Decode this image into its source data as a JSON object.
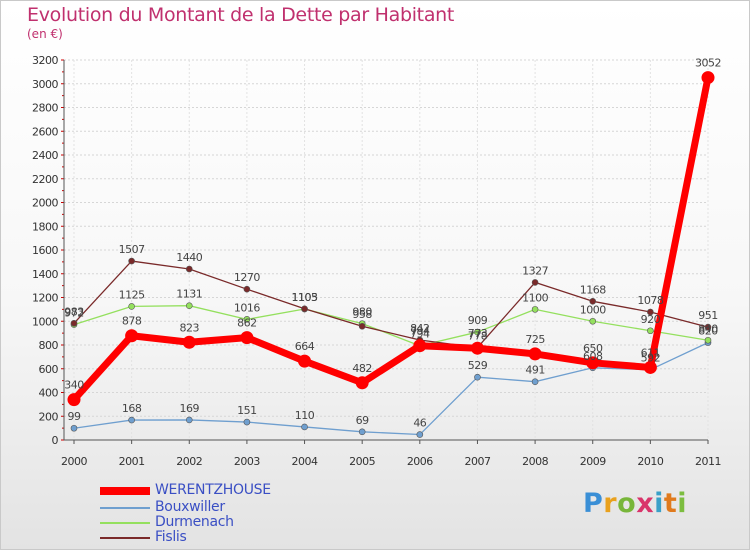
{
  "title": "Evolution du Montant de la Dette par Habitant",
  "subtitle": "(en €)",
  "logo_text": "Proxiti",
  "chart_data": {
    "type": "line",
    "title": "Evolution du Montant de la Dette par Habitant",
    "ylabel": "(en €)",
    "xlabel": "",
    "x": [
      "2000",
      "2001",
      "2002",
      "2003",
      "2004",
      "2005",
      "2006",
      "2007",
      "2008",
      "2009",
      "2010",
      "2011"
    ],
    "ylim": [
      0,
      3200
    ],
    "yticks": [
      0,
      200,
      400,
      600,
      800,
      1000,
      1200,
      1400,
      1600,
      1800,
      2000,
      2200,
      2400,
      2600,
      2800,
      3000,
      3200
    ],
    "grid": true,
    "legend_position": "bottom-left",
    "series": [
      {
        "name": "WERENTZHOUSE",
        "color": "#ff0000",
        "values": [
          340,
          878,
          823,
          862,
          664,
          482,
          794,
          773,
          725,
          650,
          611,
          3052
        ]
      },
      {
        "name": "Bouxwiller",
        "color": "#6f9fcf",
        "values": [
          99,
          168,
          169,
          151,
          110,
          69,
          46,
          529,
          491,
          608,
          592,
          820
        ]
      },
      {
        "name": "Durmenach",
        "color": "#94e05e",
        "values": [
          972,
          1125,
          1131,
          1016,
          1103,
          980,
          794,
          909,
          1100,
          1000,
          920,
          840
        ]
      },
      {
        "name": "Fislis",
        "color": "#7a2a2a",
        "values": [
          983,
          1507,
          1440,
          1270,
          1105,
          958,
          842,
          778,
          1327,
          1168,
          1078,
          951
        ]
      }
    ]
  }
}
